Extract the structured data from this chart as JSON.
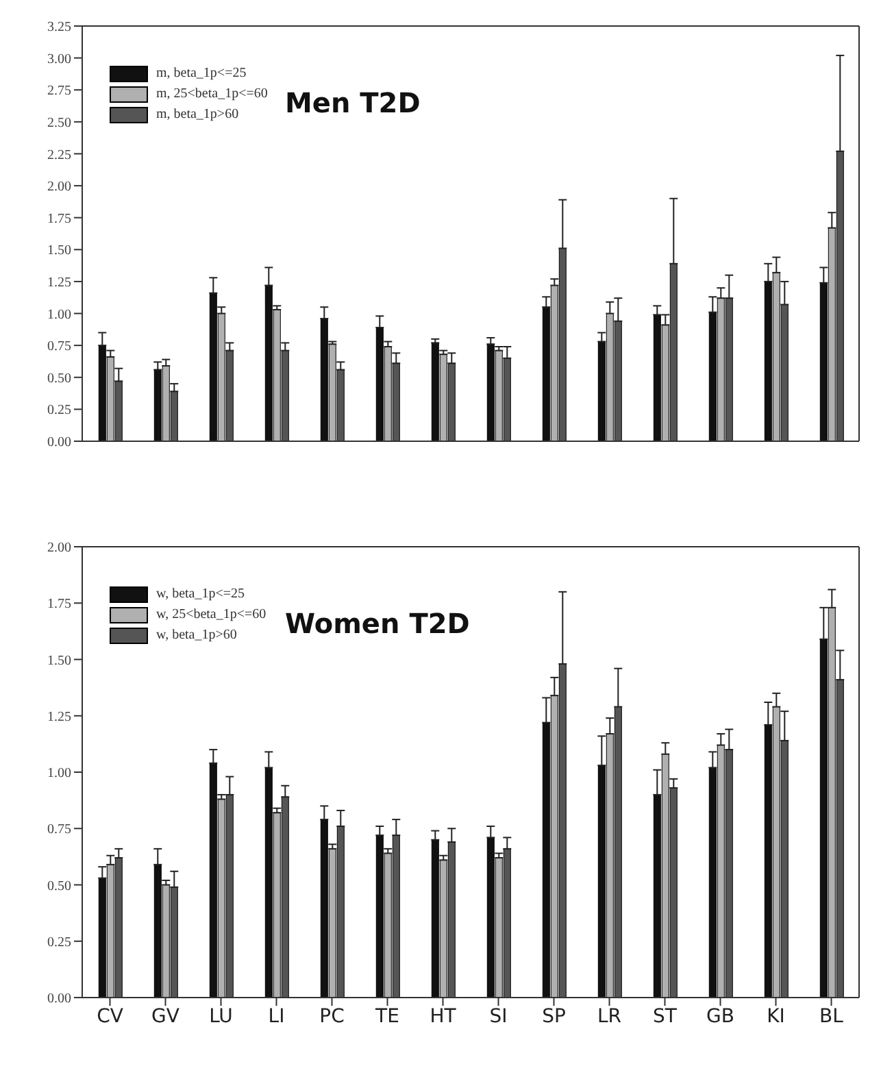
{
  "chart_data": [
    {
      "type": "bar",
      "title": "Men T2D",
      "categories": [
        null,
        null,
        null,
        null,
        null,
        null,
        null,
        null,
        null,
        null,
        null,
        null,
        null,
        null
      ],
      "tick_labels": "y",
      "legend": "top left",
      "grid": false,
      "ylim": [
        0,
        3.25
      ],
      "yticks": [
        {
          "value": 0,
          "label": "0.00"
        },
        {
          "value": 0.25,
          "label": "0.25"
        },
        {
          "value": 0.5,
          "label": "0.50"
        },
        {
          "value": 0.75,
          "label": "0.75"
        },
        {
          "value": 1,
          "label": "1.00"
        },
        {
          "value": 1.25,
          "label": "1.25"
        },
        {
          "value": 1.5,
          "label": "1.50"
        },
        {
          "value": 1.75,
          "label": "1.75"
        },
        {
          "value": 2,
          "label": "2.00"
        },
        {
          "value": 2.25,
          "label": "2.25"
        },
        {
          "value": 2.5,
          "label": "2.50"
        },
        {
          "value": 2.75,
          "label": "2.75"
        },
        {
          "value": 3,
          "label": "3.00"
        },
        {
          "value": 3.25,
          "label": "3.25"
        }
      ],
      "series": [
        {
          "name": "m, beta_1p<=25",
          "color": "#111111",
          "values": [
            0.75,
            0.56,
            1.16,
            1.22,
            0.96,
            0.89,
            0.77,
            0.76,
            1.05,
            0.78,
            0.99,
            1.01,
            1.25,
            1.24
          ],
          "errors": [
            [
              0.75,
              0.85
            ],
            [
              0.56,
              0.62
            ],
            [
              1.16,
              1.28
            ],
            [
              1.22,
              1.36
            ],
            [
              0.96,
              1.05
            ],
            [
              0.89,
              0.98
            ],
            [
              0.77,
              0.8
            ],
            [
              0.76,
              0.81
            ],
            [
              1.05,
              1.13
            ],
            [
              0.78,
              0.85
            ],
            [
              0.99,
              1.06
            ],
            [
              1.01,
              1.13
            ],
            [
              1.25,
              1.39
            ],
            [
              1.24,
              1.36
            ]
          ]
        },
        {
          "name": "m, 25<beta_1p<=60",
          "color": "#b0b0b0",
          "values": [
            0.66,
            0.59,
            1.0,
            1.03,
            0.76,
            0.74,
            0.68,
            0.71,
            1.22,
            1.0,
            0.91,
            1.12,
            1.32,
            1.67
          ],
          "errors": [
            [
              0.66,
              0.71
            ],
            [
              0.59,
              0.64
            ],
            [
              1.0,
              1.05
            ],
            [
              1.03,
              1.06
            ],
            [
              0.76,
              0.78
            ],
            [
              0.74,
              0.78
            ],
            [
              0.68,
              0.71
            ],
            [
              0.71,
              0.74
            ],
            [
              1.22,
              1.27
            ],
            [
              1.0,
              1.09
            ],
            [
              0.91,
              0.99
            ],
            [
              1.12,
              1.2
            ],
            [
              1.32,
              1.44
            ],
            [
              1.67,
              1.79
            ]
          ]
        },
        {
          "name": "m, beta_1p>60",
          "color": "#555555",
          "values": [
            0.47,
            0.39,
            0.71,
            0.71,
            0.56,
            0.61,
            0.61,
            0.65,
            1.51,
            0.94,
            1.39,
            1.12,
            1.07,
            2.27
          ],
          "errors": [
            [
              0.47,
              0.57
            ],
            [
              0.39,
              0.45
            ],
            [
              0.71,
              0.77
            ],
            [
              0.71,
              0.77
            ],
            [
              0.56,
              0.62
            ],
            [
              0.61,
              0.69
            ],
            [
              0.61,
              0.69
            ],
            [
              0.65,
              0.74
            ],
            [
              1.51,
              1.89
            ],
            [
              0.94,
              1.12
            ],
            [
              1.39,
              1.9
            ],
            [
              1.12,
              1.3
            ],
            [
              1.07,
              1.25
            ],
            [
              2.27,
              3.02
            ]
          ]
        }
      ]
    },
    {
      "type": "bar",
      "title": "Women T2D",
      "categories": [
        "CV",
        "GV",
        "LU",
        "LI",
        "PC",
        "TE",
        "HT",
        "SI",
        "SP",
        "LR",
        "ST",
        "GB",
        "KI",
        "BL"
      ],
      "legend": "top left",
      "grid": false,
      "ylim": [
        0,
        2
      ],
      "yticks": [
        {
          "value": 0,
          "label": "0.00"
        },
        {
          "value": 0.25,
          "label": "0.25"
        },
        {
          "value": 0.5,
          "label": "0.50"
        },
        {
          "value": 0.75,
          "label": "0.75"
        },
        {
          "value": 1,
          "label": "1.00"
        },
        {
          "value": 1.25,
          "label": "1.25"
        },
        {
          "value": 1.5,
          "label": "1.50"
        },
        {
          "value": 1.75,
          "label": "1.75"
        },
        {
          "value": 2,
          "label": "2.00"
        }
      ],
      "series": [
        {
          "name": "w, beta_1p<=25",
          "color": "#111111",
          "values": [
            0.53,
            0.59,
            1.04,
            1.02,
            0.79,
            0.72,
            0.7,
            0.71,
            1.22,
            1.03,
            0.9,
            1.02,
            1.21,
            1.59
          ],
          "errors": [
            [
              0.53,
              0.58
            ],
            [
              0.59,
              0.66
            ],
            [
              1.04,
              1.1
            ],
            [
              1.02,
              1.09
            ],
            [
              0.79,
              0.85
            ],
            [
              0.72,
              0.76
            ],
            [
              0.7,
              0.74
            ],
            [
              0.71,
              0.76
            ],
            [
              1.22,
              1.33
            ],
            [
              1.03,
              1.16
            ],
            [
              0.9,
              1.01
            ],
            [
              1.02,
              1.09
            ],
            [
              1.21,
              1.31
            ],
            [
              1.59,
              1.73
            ]
          ]
        },
        {
          "name": "w, 25<beta_1p<=60",
          "color": "#b0b0b0",
          "values": [
            0.59,
            0.5,
            0.88,
            0.82,
            0.66,
            0.64,
            0.61,
            0.62,
            1.34,
            1.17,
            1.08,
            1.12,
            1.29,
            1.73
          ],
          "errors": [
            [
              0.59,
              0.63
            ],
            [
              0.5,
              0.52
            ],
            [
              0.88,
              0.9
            ],
            [
              0.82,
              0.84
            ],
            [
              0.66,
              0.68
            ],
            [
              0.64,
              0.66
            ],
            [
              0.61,
              0.63
            ],
            [
              0.62,
              0.64
            ],
            [
              1.34,
              1.42
            ],
            [
              1.17,
              1.24
            ],
            [
              1.08,
              1.13
            ],
            [
              1.12,
              1.17
            ],
            [
              1.29,
              1.35
            ],
            [
              1.73,
              1.81
            ]
          ]
        },
        {
          "name": "w, beta_1p>60",
          "color": "#555555",
          "values": [
            0.62,
            0.49,
            0.9,
            0.89,
            0.76,
            0.72,
            0.69,
            0.66,
            1.48,
            1.29,
            0.93,
            1.1,
            1.14,
            1.41
          ],
          "errors": [
            [
              0.62,
              0.66
            ],
            [
              0.49,
              0.56
            ],
            [
              0.9,
              0.98
            ],
            [
              0.89,
              0.94
            ],
            [
              0.76,
              0.83
            ],
            [
              0.72,
              0.79
            ],
            [
              0.69,
              0.75
            ],
            [
              0.66,
              0.71
            ],
            [
              1.48,
              1.8
            ],
            [
              1.29,
              1.46
            ],
            [
              0.93,
              0.97
            ],
            [
              1.1,
              1.19
            ],
            [
              1.14,
              1.27
            ],
            [
              1.41,
              1.54
            ]
          ]
        }
      ]
    }
  ]
}
